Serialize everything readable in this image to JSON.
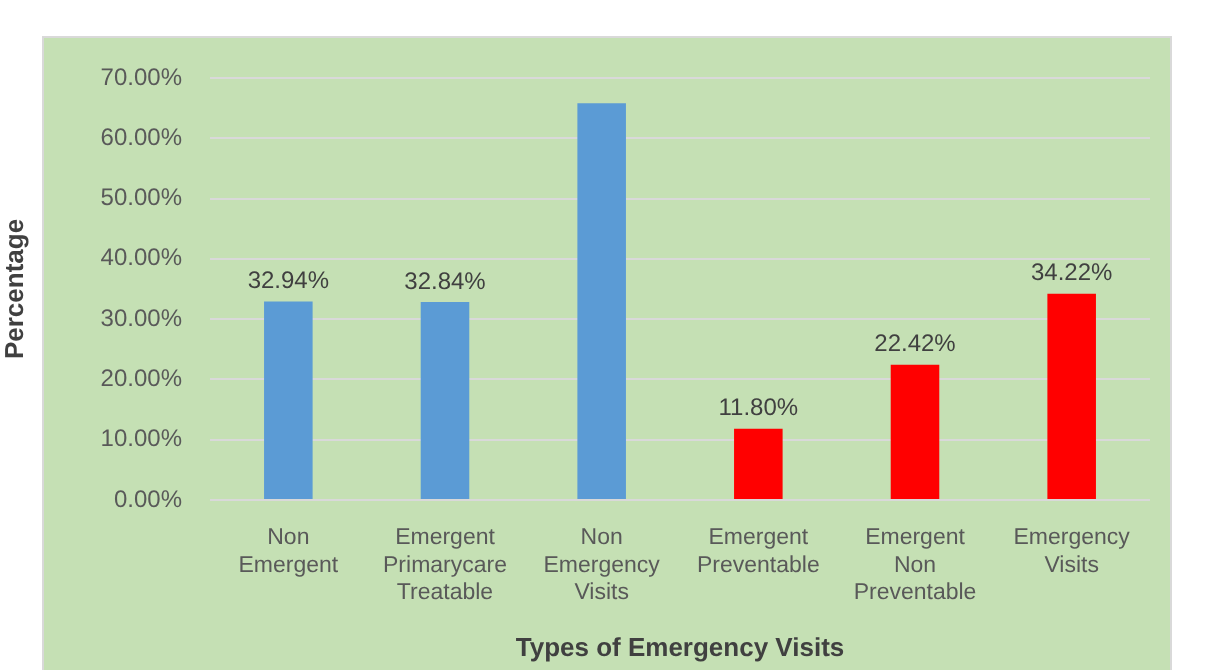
{
  "chart_data": {
    "type": "bar",
    "xlabel": "Types of Emergency Visits",
    "ylabel": "Percentage",
    "categories": [
      "Non Emergent",
      "Emergent Primarycare Treatable",
      "Non Emergency Visits",
      "Emergent Preventable",
      "Emergent Non Preventable",
      "Emergency Visits"
    ],
    "values": [
      32.94,
      32.84,
      65.8,
      11.8,
      22.42,
      34.22
    ],
    "colors": [
      "#5b9bd5",
      "#5b9bd5",
      "#5b9bd5",
      "#ff0000",
      "#ff0000",
      "#ff0000"
    ],
    "value_labels": [
      "32.94%",
      "32.84%",
      null,
      "11.80%",
      "22.42%",
      "34.22%"
    ],
    "ylim": [
      0,
      70
    ],
    "yticks": [
      {
        "value": 0,
        "label": "0.00%"
      },
      {
        "value": 10,
        "label": "10.00%"
      },
      {
        "value": 20,
        "label": "20.00%"
      },
      {
        "value": 30,
        "label": "30.00%"
      },
      {
        "value": 40,
        "label": "40.00%"
      },
      {
        "value": 50,
        "label": "50.00%"
      },
      {
        "value": 60,
        "label": "60.00%"
      },
      {
        "value": 70,
        "label": "70.00%"
      }
    ],
    "grid": "y"
  }
}
